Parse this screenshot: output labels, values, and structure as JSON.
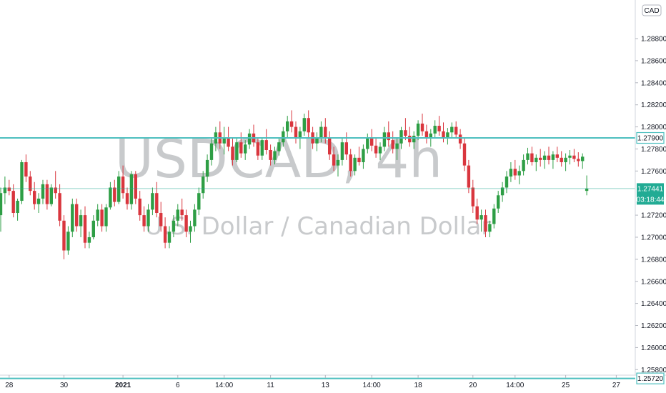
{
  "chart_data": {
    "type": "candlestick",
    "symbol": "USDCAD, 4h",
    "description": "U.S. Dollar / Canadian Dollar",
    "currency": "CAD",
    "ylim": [
      1.2575,
      1.2915
    ],
    "y_ticks": [
      "1.28800",
      "1.28600",
      "1.28400",
      "1.28200",
      "1.28000",
      "1.27800",
      "1.27600",
      "1.27200",
      "1.27000",
      "1.26800",
      "1.26600",
      "1.26400",
      "1.26200",
      "1.26000",
      "1.25800"
    ],
    "x_ticks": [
      {
        "label": "28",
        "bar": 2
      },
      {
        "label": "30",
        "bar": 15
      },
      {
        "label": "2021",
        "bar": 29
      },
      {
        "label": "6",
        "bar": 42
      },
      {
        "label": "14:00",
        "bar": 53
      },
      {
        "label": "11",
        "bar": 64
      },
      {
        "label": "13",
        "bar": 77
      },
      {
        "label": "14:00",
        "bar": 88
      },
      {
        "label": "18",
        "bar": 99
      },
      {
        "label": "20",
        "bar": 112
      },
      {
        "label": "14:00",
        "bar": 122
      },
      {
        "label": "25",
        "bar": 134
      },
      {
        "label": "27",
        "bar": 146
      }
    ],
    "horizontal_lines": [
      {
        "value": 1.279,
        "label": "1.27900",
        "color": "#4dbfbf"
      },
      {
        "value": 1.2572,
        "label": "1.25720",
        "color": "#4dbfbf"
      }
    ],
    "last_price": {
      "value": 1.27441,
      "label": "1.27441",
      "countdown": "03:18:44",
      "color": "#22ab94"
    },
    "up_color": "#2e9e45",
    "down_color": "#d9363e",
    "candles": [
      [
        1.272,
        1.2745,
        1.2705,
        1.274
      ],
      [
        1.274,
        1.2755,
        1.273,
        1.2745
      ],
      [
        1.2745,
        1.2752,
        1.2738,
        1.2742
      ],
      [
        1.2742,
        1.2748,
        1.2718,
        1.2722
      ],
      [
        1.2722,
        1.2735,
        1.2715,
        1.2733
      ],
      [
        1.2733,
        1.277,
        1.273,
        1.2768
      ],
      [
        1.2768,
        1.2775,
        1.275,
        1.2755
      ],
      [
        1.2755,
        1.276,
        1.2738,
        1.2742
      ],
      [
        1.2742,
        1.275,
        1.2725,
        1.273
      ],
      [
        1.273,
        1.274,
        1.2722,
        1.2735
      ],
      [
        1.2735,
        1.2752,
        1.273,
        1.2748
      ],
      [
        1.2748,
        1.2752,
        1.2725,
        1.273
      ],
      [
        1.273,
        1.2748,
        1.2728,
        1.2745
      ],
      [
        1.2745,
        1.276,
        1.2735,
        1.274
      ],
      [
        1.274,
        1.2748,
        1.271,
        1.2715
      ],
      [
        1.2715,
        1.272,
        1.268,
        1.2688
      ],
      [
        1.2688,
        1.271,
        1.2684,
        1.2705
      ],
      [
        1.2705,
        1.2735,
        1.27,
        1.273
      ],
      [
        1.273,
        1.2735,
        1.2705,
        1.271
      ],
      [
        1.271,
        1.2725,
        1.27,
        1.272
      ],
      [
        1.272,
        1.2728,
        1.269,
        1.2695
      ],
      [
        1.2695,
        1.2705,
        1.269,
        1.27
      ],
      [
        1.27,
        1.272,
        1.2698,
        1.2715
      ],
      [
        1.2715,
        1.273,
        1.271,
        1.2725
      ],
      [
        1.2725,
        1.273,
        1.2705,
        1.271
      ],
      [
        1.271,
        1.273,
        1.2705,
        1.2727
      ],
      [
        1.2727,
        1.275,
        1.2725,
        1.2745
      ],
      [
        1.2745,
        1.2752,
        1.2728,
        1.2732
      ],
      [
        1.2732,
        1.276,
        1.273,
        1.2755
      ],
      [
        1.2755,
        1.2765,
        1.2735,
        1.274
      ],
      [
        1.274,
        1.2745,
        1.2725,
        1.273
      ],
      [
        1.273,
        1.276,
        1.2725,
        1.2757
      ],
      [
        1.2757,
        1.276,
        1.273,
        1.2735
      ],
      [
        1.2735,
        1.2742,
        1.2715,
        1.272
      ],
      [
        1.272,
        1.2728,
        1.2705,
        1.271
      ],
      [
        1.271,
        1.273,
        1.2705,
        1.2725
      ],
      [
        1.2725,
        1.2745,
        1.272,
        1.274
      ],
      [
        1.274,
        1.275,
        1.2718,
        1.2722
      ],
      [
        1.2722,
        1.2732,
        1.2705,
        1.271
      ],
      [
        1.271,
        1.2718,
        1.269,
        1.2695
      ],
      [
        1.2695,
        1.271,
        1.269,
        1.2705
      ],
      [
        1.2705,
        1.272,
        1.27,
        1.2715
      ],
      [
        1.2715,
        1.273,
        1.271,
        1.2725
      ],
      [
        1.2725,
        1.2735,
        1.2715,
        1.272
      ],
      [
        1.272,
        1.2725,
        1.27,
        1.2705
      ],
      [
        1.2705,
        1.2715,
        1.2695,
        1.271
      ],
      [
        1.271,
        1.273,
        1.2705,
        1.2725
      ],
      [
        1.2725,
        1.2745,
        1.272,
        1.274
      ],
      [
        1.274,
        1.276,
        1.2735,
        1.2755
      ],
      [
        1.2755,
        1.2775,
        1.275,
        1.277
      ],
      [
        1.277,
        1.279,
        1.2765,
        1.2785
      ],
      [
        1.2785,
        1.28,
        1.2778,
        1.2795
      ],
      [
        1.2795,
        1.2805,
        1.278,
        1.2785
      ],
      [
        1.2785,
        1.28,
        1.2775,
        1.279
      ],
      [
        1.279,
        1.28,
        1.2778,
        1.2782
      ],
      [
        1.2782,
        1.279,
        1.2765,
        1.277
      ],
      [
        1.277,
        1.279,
        1.2768,
        1.2786
      ],
      [
        1.2786,
        1.2795,
        1.2772,
        1.2776
      ],
      [
        1.2776,
        1.2788,
        1.277,
        1.2784
      ],
      [
        1.2784,
        1.2798,
        1.278,
        1.2794
      ],
      [
        1.2794,
        1.2802,
        1.2782,
        1.2786
      ],
      [
        1.2786,
        1.279,
        1.277,
        1.2774
      ],
      [
        1.2774,
        1.279,
        1.277,
        1.2788
      ],
      [
        1.2788,
        1.2798,
        1.2775,
        1.2779
      ],
      [
        1.2779,
        1.2784,
        1.2765,
        1.277
      ],
      [
        1.277,
        1.2782,
        1.2766,
        1.2778
      ],
      [
        1.2778,
        1.279,
        1.2774,
        1.2786
      ],
      [
        1.2786,
        1.28,
        1.2782,
        1.2796
      ],
      [
        1.2796,
        1.281,
        1.279,
        1.2805
      ],
      [
        1.2805,
        1.2815,
        1.2795,
        1.28
      ],
      [
        1.28,
        1.2805,
        1.2785,
        1.279
      ],
      [
        1.279,
        1.28,
        1.278,
        1.2796
      ],
      [
        1.2796,
        1.2812,
        1.2792,
        1.2808
      ],
      [
        1.2808,
        1.2815,
        1.279,
        1.2795
      ],
      [
        1.2795,
        1.28,
        1.278,
        1.2785
      ],
      [
        1.2785,
        1.2795,
        1.2778,
        1.279
      ],
      [
        1.279,
        1.2805,
        1.2786,
        1.28
      ],
      [
        1.28,
        1.2808,
        1.2785,
        1.279
      ],
      [
        1.279,
        1.2796,
        1.277,
        1.2775
      ],
      [
        1.2775,
        1.2782,
        1.276,
        1.2765
      ],
      [
        1.2765,
        1.2775,
        1.2755,
        1.277
      ],
      [
        1.277,
        1.279,
        1.2765,
        1.2786
      ],
      [
        1.2786,
        1.2795,
        1.277,
        1.2775
      ],
      [
        1.2775,
        1.278,
        1.2755,
        1.276
      ],
      [
        1.276,
        1.2775,
        1.2756,
        1.2772
      ],
      [
        1.2772,
        1.2782,
        1.2765,
        1.2768
      ],
      [
        1.2768,
        1.2784,
        1.2762,
        1.278
      ],
      [
        1.278,
        1.2794,
        1.2776,
        1.279
      ],
      [
        1.279,
        1.2798,
        1.2778,
        1.2783
      ],
      [
        1.2783,
        1.279,
        1.2772,
        1.2776
      ],
      [
        1.2776,
        1.2786,
        1.277,
        1.2782
      ],
      [
        1.2782,
        1.28,
        1.2778,
        1.2795
      ],
      [
        1.2795,
        1.2805,
        1.2782,
        1.2788
      ],
      [
        1.2788,
        1.2796,
        1.2776,
        1.278
      ],
      [
        1.278,
        1.279,
        1.277,
        1.2785
      ],
      [
        1.2785,
        1.28,
        1.278,
        1.2797
      ],
      [
        1.2797,
        1.2808,
        1.2788,
        1.2792
      ],
      [
        1.2792,
        1.28,
        1.2782,
        1.2786
      ],
      [
        1.2786,
        1.2796,
        1.278,
        1.2792
      ],
      [
        1.2792,
        1.2806,
        1.2788,
        1.2803
      ],
      [
        1.2803,
        1.2812,
        1.2792,
        1.2796
      ],
      [
        1.2796,
        1.2802,
        1.2785,
        1.279
      ],
      [
        1.279,
        1.2798,
        1.2782,
        1.2794
      ],
      [
        1.2794,
        1.2806,
        1.279,
        1.2801
      ],
      [
        1.2801,
        1.281,
        1.2792,
        1.2796
      ],
      [
        1.2796,
        1.2804,
        1.2786,
        1.279
      ],
      [
        1.279,
        1.2799,
        1.2784,
        1.2795
      ],
      [
        1.2795,
        1.2804,
        1.279,
        1.28
      ],
      [
        1.28,
        1.2805,
        1.279,
        1.2793
      ],
      [
        1.2793,
        1.2798,
        1.278,
        1.2785
      ],
      [
        1.2785,
        1.279,
        1.276,
        1.2765
      ],
      [
        1.2765,
        1.277,
        1.274,
        1.2745
      ],
      [
        1.2745,
        1.2752,
        1.2722,
        1.2728
      ],
      [
        1.2728,
        1.2735,
        1.2712,
        1.2716
      ],
      [
        1.2716,
        1.2725,
        1.2705,
        1.272
      ],
      [
        1.272,
        1.2725,
        1.27,
        1.2705
      ],
      [
        1.2705,
        1.2715,
        1.27,
        1.2712
      ],
      [
        1.2712,
        1.273,
        1.2708,
        1.2726
      ],
      [
        1.2726,
        1.2742,
        1.2722,
        1.2738
      ],
      [
        1.2738,
        1.275,
        1.2732,
        1.2745
      ],
      [
        1.2745,
        1.276,
        1.274,
        1.2755
      ],
      [
        1.2755,
        1.2768,
        1.275,
        1.2762
      ],
      [
        1.2762,
        1.277,
        1.2752,
        1.2756
      ],
      [
        1.2756,
        1.2765,
        1.2748,
        1.276
      ],
      [
        1.276,
        1.2775,
        1.2756,
        1.277
      ],
      [
        1.277,
        1.2781,
        1.2766,
        1.2776
      ],
      [
        1.2776,
        1.2782,
        1.2765,
        1.2768
      ],
      [
        1.2768,
        1.2775,
        1.276,
        1.2772
      ],
      [
        1.2772,
        1.278,
        1.2764,
        1.277
      ],
      [
        1.277,
        1.2778,
        1.2762,
        1.2774
      ],
      [
        1.2774,
        1.2782,
        1.2766,
        1.277
      ],
      [
        1.277,
        1.2778,
        1.2762,
        1.2775
      ],
      [
        1.2775,
        1.2782,
        1.2768,
        1.2772
      ],
      [
        1.2772,
        1.2778,
        1.2764,
        1.2768
      ],
      [
        1.2768,
        1.2776,
        1.276,
        1.2772
      ],
      [
        1.2772,
        1.2779,
        1.2766,
        1.2774
      ],
      [
        1.2774,
        1.278,
        1.2768,
        1.2771
      ],
      [
        1.2771,
        1.2777,
        1.2764,
        1.2769
      ],
      [
        1.2769,
        1.2776,
        1.2762,
        1.2773
      ],
      [
        1.2742,
        1.2756,
        1.2738,
        1.2744
      ]
    ]
  }
}
